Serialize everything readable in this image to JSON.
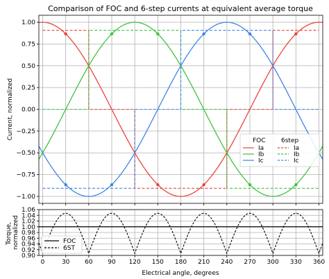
{
  "chart_data": [
    {
      "type": "line",
      "title": "Comparison of FOC and 6-step currents at equivalent average torque",
      "xlabel": "",
      "ylabel": "Current, normalized",
      "xlim": [
        -5,
        365
      ],
      "ylim": [
        -1.08,
        1.08
      ],
      "xticks": [
        0,
        30,
        60,
        90,
        120,
        150,
        180,
        210,
        240,
        270,
        300,
        330,
        360
      ],
      "yticks": [
        -1.0,
        -0.75,
        -0.5,
        -0.25,
        0.0,
        0.25,
        0.5,
        0.75,
        1.0
      ],
      "ytick_labels": [
        "−1.00",
        "−0.75",
        "−0.50",
        "−0.25",
        "0.00",
        "0.25",
        "0.50",
        "0.75",
        "1.00"
      ],
      "grid": true,
      "legend_placement": "lower-right",
      "legend_groups": [
        {
          "title": "FOC",
          "entries": [
            {
              "label": "Ia",
              "color": "#e8453c",
              "style": "solid"
            },
            {
              "label": "Ib",
              "color": "#3fc23f",
              "style": "solid"
            },
            {
              "label": "Ic",
              "color": "#3f84e5",
              "style": "solid"
            }
          ]
        },
        {
          "title": "6step",
          "entries": [
            {
              "label": "Ia",
              "color": "#e8453c",
              "style": "dashed"
            },
            {
              "label": "Ib",
              "color": "#3fc23f",
              "style": "dashed"
            },
            {
              "label": "Ic",
              "color": "#3f84e5",
              "style": "dashed"
            }
          ]
        }
      ],
      "foc_series": [
        {
          "name": "Ia",
          "color": "#e8453c",
          "amplitude": 1.0,
          "phase_deg": 90
        },
        {
          "name": "Ib",
          "color": "#3fc23f",
          "amplitude": 1.0,
          "phase_deg": -30
        },
        {
          "name": "Ic",
          "color": "#3f84e5",
          "amplitude": 1.0,
          "phase_deg": 210
        }
      ],
      "sixstep_level": 0.907,
      "sixstep_series": [
        {
          "name": "Ia",
          "color": "#e8453c",
          "steps": [
            [
              0,
              60,
              0.907
            ],
            [
              60,
              120,
              0
            ],
            [
              120,
              240,
              -0.907
            ],
            [
              240,
              300,
              0
            ],
            [
              300,
              360,
              0.907
            ]
          ]
        },
        {
          "name": "Ib",
          "color": "#3fc23f",
          "steps": [
            [
              0,
              60,
              0
            ],
            [
              60,
              180,
              0.907
            ],
            [
              180,
              240,
              0
            ],
            [
              240,
              360,
              -0.907
            ]
          ]
        },
        {
          "name": "Ic",
          "color": "#3f84e5",
          "steps": [
            [
              0,
              120,
              -0.907
            ],
            [
              120,
              180,
              0
            ],
            [
              180,
              300,
              0.907
            ],
            [
              300,
              360,
              0
            ]
          ]
        }
      ],
      "markers": [
        {
          "x": 30,
          "y": 0.866,
          "color": "#e8453c"
        },
        {
          "x": 150,
          "y": -0.866,
          "color": "#e8453c"
        },
        {
          "x": 210,
          "y": -0.866,
          "color": "#e8453c"
        },
        {
          "x": 330,
          "y": 0.866,
          "color": "#e8453c"
        },
        {
          "x": 90,
          "y": 0.866,
          "color": "#3fc23f"
        },
        {
          "x": 150,
          "y": 0.866,
          "color": "#3fc23f"
        },
        {
          "x": 270,
          "y": -0.866,
          "color": "#3fc23f"
        },
        {
          "x": 330,
          "y": -0.866,
          "color": "#3fc23f"
        },
        {
          "x": 30,
          "y": -0.866,
          "color": "#3f84e5"
        },
        {
          "x": 90,
          "y": -0.866,
          "color": "#3f84e5"
        },
        {
          "x": 210,
          "y": 0.866,
          "color": "#3f84e5"
        },
        {
          "x": 270,
          "y": 0.866,
          "color": "#3f84e5"
        }
      ]
    },
    {
      "type": "line",
      "title": "",
      "xlabel": "Electrical angle, degrees",
      "ylabel": "Torque, normalized",
      "xlim": [
        -5,
        365
      ],
      "ylim": [
        0.9,
        1.06
      ],
      "xticks": [
        0,
        30,
        60,
        90,
        120,
        150,
        180,
        210,
        240,
        270,
        300,
        330,
        360
      ],
      "yticks": [
        0.9,
        0.92,
        0.94,
        0.96,
        0.98,
        1.0,
        1.02,
        1.04,
        1.06
      ],
      "ytick_labels": [
        "0.90",
        "0.92",
        "0.94",
        "0.96",
        "0.98",
        "1.00",
        "1.02",
        "1.04",
        "1.06"
      ],
      "grid": true,
      "legend_placement": "lower-left",
      "series": [
        {
          "name": "FOC",
          "style": "solid",
          "color": "#000000",
          "constant": 1.0
        },
        {
          "name": "6ST",
          "style": "dashed",
          "color": "#000000",
          "min": 0.9069,
          "max": 1.0472,
          "period_deg": 60,
          "peak_offset_deg": 30
        }
      ]
    }
  ]
}
